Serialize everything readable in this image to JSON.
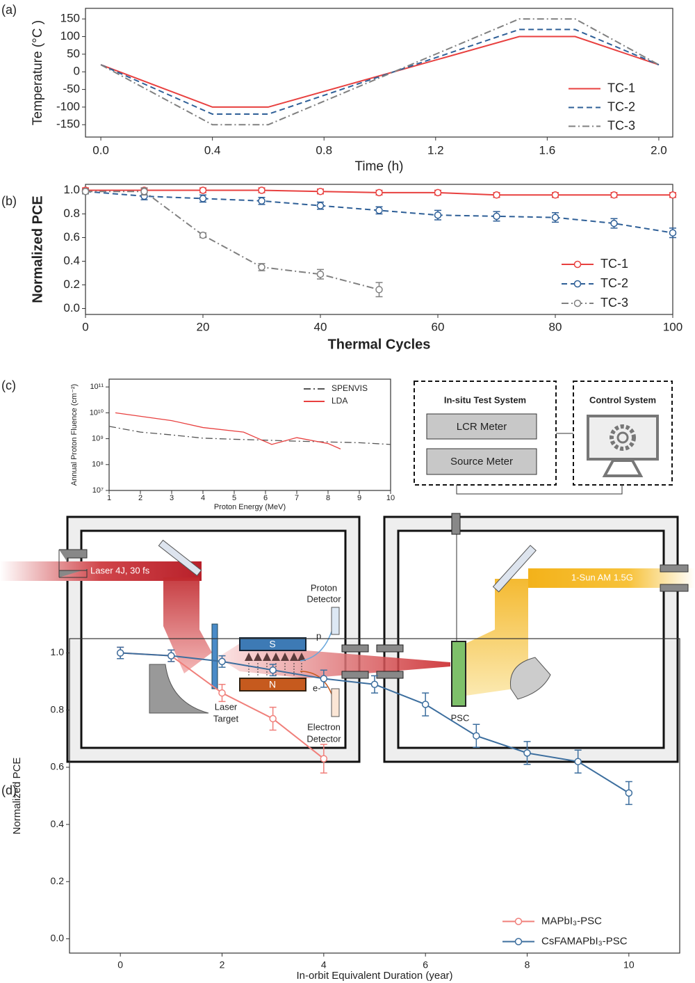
{
  "chart_data": [
    {
      "type": "line",
      "label": "(a)",
      "xlabel": "Time (h)",
      "ylabel": "Temperature (°C )",
      "x": [
        0,
        0.4,
        0.6,
        1.5,
        1.7,
        2.0
      ],
      "series": [
        {
          "name": "TC-1",
          "color": "#e8403f",
          "dash": "solid",
          "values": [
            20,
            -100,
            -100,
            100,
            100,
            20
          ]
        },
        {
          "name": "TC-2",
          "color": "#2e5f97",
          "dash": "dashed",
          "values": [
            20,
            -120,
            -120,
            120,
            120,
            20
          ]
        },
        {
          "name": "TC-3",
          "color": "#808080",
          "dash": "dashdot",
          "values": [
            20,
            -150,
            -150,
            150,
            150,
            20
          ]
        }
      ],
      "xlim": [
        -0.055,
        2.05
      ],
      "xticks": [
        {
          "value": 0,
          "label": "0.0"
        },
        0.4,
        0.8,
        1.2,
        1.6,
        {
          "value": 2,
          "label": "2.0"
        }
      ],
      "ylim": [
        -185,
        180
      ],
      "yticks": [
        -150,
        -100,
        -50,
        0,
        50,
        100,
        150
      ],
      "legend": "lower right",
      "markers": false
    },
    {
      "type": "line",
      "label": "(b)",
      "xlabel": "Thermal Cycles",
      "ylabel": "Normalized PCE",
      "x": [
        0,
        10,
        20,
        30,
        40,
        50,
        60,
        70,
        80,
        90,
        100
      ],
      "series": [
        {
          "name": "TC-1",
          "color": "#e8403f",
          "dash": "solid",
          "values": [
            1.0,
            1.0,
            1.0,
            1.0,
            0.99,
            0.98,
            0.98,
            0.96,
            0.96,
            0.96,
            0.96
          ],
          "errors": [
            0.02,
            0.02,
            0.02,
            0.02,
            0.02,
            0.02,
            0.02,
            0.02,
            0.02,
            0.02,
            0.02
          ]
        },
        {
          "name": "TC-2",
          "color": "#2e5f97",
          "dash": "dashed",
          "values": [
            0.99,
            0.95,
            0.93,
            0.91,
            0.87,
            0.83,
            0.79,
            0.78,
            0.77,
            0.72,
            0.64
          ],
          "errors": [
            0.02,
            0.03,
            0.03,
            0.03,
            0.03,
            0.03,
            0.04,
            0.04,
            0.04,
            0.04,
            0.04
          ]
        },
        {
          "name": "TC-3",
          "color": "#808080",
          "dash": "dashdot",
          "values": [
            0.99,
            0.99,
            0.62,
            0.35,
            0.29,
            0.16,
            null,
            null,
            null,
            null,
            null
          ],
          "errors": [
            0.02,
            0.03,
            0.02,
            0.03,
            0.04,
            0.06,
            null,
            null,
            null,
            null,
            null
          ]
        }
      ],
      "xlim": [
        0,
        100
      ],
      "xticks": [
        0,
        20,
        40,
        60,
        80,
        100
      ],
      "ylim": [
        -0.05,
        1.05
      ],
      "yticks": [
        {
          "value": 0,
          "label": "0.0"
        },
        0.2,
        0.4,
        0.6,
        0.8,
        {
          "value": 1,
          "label": "1.0"
        }
      ],
      "legend": "lower right",
      "markers": true
    },
    {
      "type": "line",
      "xlabel": "Proton Energy (MeV)",
      "ylabel": "Annual Proton Fluence (cm⁻²)",
      "log_y": true,
      "series": [
        {
          "name": "SPENVIS",
          "color": "#555555",
          "dash": "dashdot",
          "x": [
            1,
            2,
            3,
            4,
            5,
            6,
            7,
            8,
            9,
            10
          ],
          "values": [
            3000000000,
            1800000000,
            1400000000,
            1050000000,
            950000000,
            880000000,
            800000000,
            750000000,
            700000000,
            600000000
          ]
        },
        {
          "name": "LDA",
          "color": "#e8403f",
          "dash": "solid",
          "x": [
            1.2,
            3,
            4,
            5.3,
            6.2,
            7,
            8,
            8.4
          ],
          "values": [
            10000000000,
            5000000000,
            2700000000,
            1800000000,
            600000000,
            1100000000,
            650000000,
            400000000
          ]
        }
      ],
      "xlim": [
        1,
        10
      ],
      "xticks": [
        1,
        2,
        3,
        4,
        5,
        6,
        7,
        8,
        9,
        10
      ],
      "ylim": [
        10000000,
        200000000000
      ],
      "yticks": [
        {
          "value": 10000000,
          "label": "10⁷"
        },
        {
          "value": 100000000,
          "label": "10⁸"
        },
        {
          "value": 1000000000,
          "label": "10⁹"
        },
        {
          "value": 10000000000,
          "label": "10¹⁰"
        },
        {
          "value": 100000000000,
          "label": "10¹¹"
        }
      ],
      "legend": "upper right",
      "markers": false
    },
    {
      "type": "line",
      "label": "(d)",
      "xlabel": "In-orbit Equivalent Duration (year)",
      "ylabel": "Normalized PCE",
      "x": [
        0,
        1,
        2,
        3,
        4,
        5,
        6,
        7,
        8,
        9,
        10
      ],
      "series": [
        {
          "name": "MAPbI₃-PSC",
          "color": "#f07f7a",
          "dash": "solid",
          "values": [
            1.0,
            0.99,
            0.86,
            0.77,
            0.63,
            null,
            null,
            null,
            null,
            null,
            null
          ],
          "errors": [
            0.02,
            0.02,
            0.03,
            0.04,
            0.05,
            null,
            null,
            null,
            null,
            null,
            null
          ]
        },
        {
          "name": "CsFAMAPbI₃-PSC",
          "color": "#3c6e9e",
          "dash": "solid",
          "values": [
            1.0,
            0.99,
            0.97,
            0.94,
            0.91,
            0.89,
            0.82,
            0.71,
            0.65,
            0.62,
            0.51
          ],
          "errors": [
            0.02,
            0.02,
            0.02,
            0.02,
            0.03,
            0.03,
            0.04,
            0.04,
            0.04,
            0.04,
            0.04
          ]
        }
      ],
      "xlim": [
        -1,
        11
      ],
      "xticks": [
        0,
        2,
        4,
        6,
        8,
        10
      ],
      "ylim": [
        -0.05,
        1.05
      ],
      "yticks": [
        {
          "value": 0,
          "label": "0.0"
        },
        0.2,
        0.4,
        0.6,
        0.8,
        {
          "value": 1,
          "label": "1.0"
        }
      ],
      "legend": "lower right",
      "markers": true
    }
  ],
  "diagram": {
    "panel_label": "(c)",
    "test_system": {
      "title": "In-situ Test System",
      "lcr": "LCR Meter",
      "source": "Source Meter"
    },
    "control_system": "Control System",
    "laser": "Laser 4J, 30 fs",
    "sun": "1-Sun AM 1.5G",
    "proton_detector": [
      "Proton",
      "Detector"
    ],
    "electron_detector": [
      "Electron",
      "Detector"
    ],
    "laser_target": [
      "Laser",
      "Target"
    ],
    "magnet_s": "S",
    "magnet_n": "N",
    "proton": "p",
    "electron": "e-",
    "psc": "PSC"
  }
}
